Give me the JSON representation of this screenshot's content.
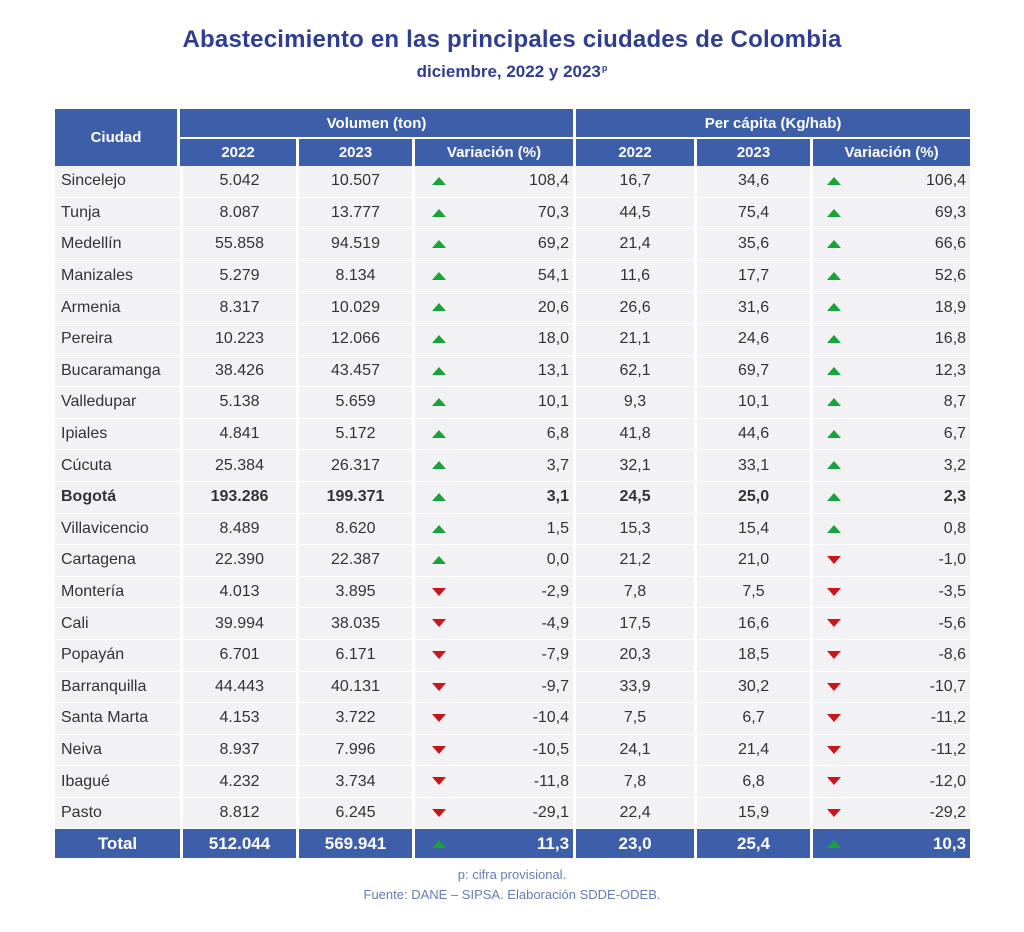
{
  "title": "Abastecimiento en las principales ciudades de Colombia",
  "subtitle": "diciembre, 2022 y 2023",
  "subtitle_sup": "p",
  "header": {
    "city": "Ciudad",
    "volume_group": "Volumen (ton)",
    "percapita_group": "Per cápita (Kg/hab)",
    "y2022": "2022",
    "y2023": "2023",
    "variation": "Variación (%)"
  },
  "colors": {
    "header_bg": "#3d5ea8",
    "row_bg": "#f2f2f4",
    "up": "#1aa33a",
    "down": "#c8161d",
    "title": "#2f3e8f"
  },
  "rows": [
    {
      "city": "Sincelejo",
      "v2022": "5.042",
      "v2023": "10.507",
      "vdir": "up",
      "vvar": "108,4",
      "p2022": "16,7",
      "p2023": "34,6",
      "pdir": "up",
      "pvar": "106,4"
    },
    {
      "city": "Tunja",
      "v2022": "8.087",
      "v2023": "13.777",
      "vdir": "up",
      "vvar": "70,3",
      "p2022": "44,5",
      "p2023": "75,4",
      "pdir": "up",
      "pvar": "69,3"
    },
    {
      "city": "Medellín",
      "v2022": "55.858",
      "v2023": "94.519",
      "vdir": "up",
      "vvar": "69,2",
      "p2022": "21,4",
      "p2023": "35,6",
      "pdir": "up",
      "pvar": "66,6"
    },
    {
      "city": "Manizales",
      "v2022": "5.279",
      "v2023": "8.134",
      "vdir": "up",
      "vvar": "54,1",
      "p2022": "11,6",
      "p2023": "17,7",
      "pdir": "up",
      "pvar": "52,6"
    },
    {
      "city": "Armenia",
      "v2022": "8.317",
      "v2023": "10.029",
      "vdir": "up",
      "vvar": "20,6",
      "p2022": "26,6",
      "p2023": "31,6",
      "pdir": "up",
      "pvar": "18,9"
    },
    {
      "city": "Pereira",
      "v2022": "10.223",
      "v2023": "12.066",
      "vdir": "up",
      "vvar": "18,0",
      "p2022": "21,1",
      "p2023": "24,6",
      "pdir": "up",
      "pvar": "16,8"
    },
    {
      "city": "Bucaramanga",
      "v2022": "38.426",
      "v2023": "43.457",
      "vdir": "up",
      "vvar": "13,1",
      "p2022": "62,1",
      "p2023": "69,7",
      "pdir": "up",
      "pvar": "12,3"
    },
    {
      "city": "Valledupar",
      "v2022": "5.138",
      "v2023": "5.659",
      "vdir": "up",
      "vvar": "10,1",
      "p2022": "9,3",
      "p2023": "10,1",
      "pdir": "up",
      "pvar": "8,7"
    },
    {
      "city": "Ipiales",
      "v2022": "4.841",
      "v2023": "5.172",
      "vdir": "up",
      "vvar": "6,8",
      "p2022": "41,8",
      "p2023": "44,6",
      "pdir": "up",
      "pvar": "6,7"
    },
    {
      "city": "Cúcuta",
      "v2022": "25.384",
      "v2023": "26.317",
      "vdir": "up",
      "vvar": "3,7",
      "p2022": "32,1",
      "p2023": "33,1",
      "pdir": "up",
      "pvar": "3,2"
    },
    {
      "city": "Bogotá",
      "bold": true,
      "v2022": "193.286",
      "v2023": "199.371",
      "vdir": "up",
      "vvar": "3,1",
      "p2022": "24,5",
      "p2023": "25,0",
      "pdir": "up",
      "pvar": "2,3"
    },
    {
      "city": "Villavicencio",
      "v2022": "8.489",
      "v2023": "8.620",
      "vdir": "up",
      "vvar": "1,5",
      "p2022": "15,3",
      "p2023": "15,4",
      "pdir": "up",
      "pvar": "0,8"
    },
    {
      "city": "Cartagena",
      "v2022": "22.390",
      "v2023": "22.387",
      "vdir": "up",
      "vvar": "0,0",
      "p2022": "21,2",
      "p2023": "21,0",
      "pdir": "down",
      "pvar": "-1,0"
    },
    {
      "city": "Montería",
      "v2022": "4.013",
      "v2023": "3.895",
      "vdir": "down",
      "vvar": "-2,9",
      "p2022": "7,8",
      "p2023": "7,5",
      "pdir": "down",
      "pvar": "-3,5"
    },
    {
      "city": "Cali",
      "v2022": "39.994",
      "v2023": "38.035",
      "vdir": "down",
      "vvar": "-4,9",
      "p2022": "17,5",
      "p2023": "16,6",
      "pdir": "down",
      "pvar": "-5,6"
    },
    {
      "city": "Popayán",
      "v2022": "6.701",
      "v2023": "6.171",
      "vdir": "down",
      "vvar": "-7,9",
      "p2022": "20,3",
      "p2023": "18,5",
      "pdir": "down",
      "pvar": "-8,6"
    },
    {
      "city": "Barranquilla",
      "v2022": "44.443",
      "v2023": "40.131",
      "vdir": "down",
      "vvar": "-9,7",
      "p2022": "33,9",
      "p2023": "30,2",
      "pdir": "down",
      "pvar": "-10,7"
    },
    {
      "city": "Santa Marta",
      "v2022": "4.153",
      "v2023": "3.722",
      "vdir": "down",
      "vvar": "-10,4",
      "p2022": "7,5",
      "p2023": "6,7",
      "pdir": "down",
      "pvar": "-11,2"
    },
    {
      "city": "Neiva",
      "v2022": "8.937",
      "v2023": "7.996",
      "vdir": "down",
      "vvar": "-10,5",
      "p2022": "24,1",
      "p2023": "21,4",
      "pdir": "down",
      "pvar": "-11,2"
    },
    {
      "city": "Ibagué",
      "v2022": "4.232",
      "v2023": "3.734",
      "vdir": "down",
      "vvar": "-11,8",
      "p2022": "7,8",
      "p2023": "6,8",
      "pdir": "down",
      "pvar": "-12,0"
    },
    {
      "city": "Pasto",
      "v2022": "8.812",
      "v2023": "6.245",
      "vdir": "down",
      "vvar": "-29,1",
      "p2022": "22,4",
      "p2023": "15,9",
      "pdir": "down",
      "pvar": "-29,2"
    }
  ],
  "total": {
    "label": "Total",
    "v2022": "512.044",
    "v2023": "569.941",
    "vdir": "up",
    "vvar": "11,3",
    "p2022": "23,0",
    "p2023": "25,4",
    "pdir": "up",
    "pvar": "10,3"
  },
  "footer": {
    "note": "p: cifra provisional.",
    "source": "Fuente: DANE – SIPSA. Elaboración SDDE-ODEB."
  }
}
